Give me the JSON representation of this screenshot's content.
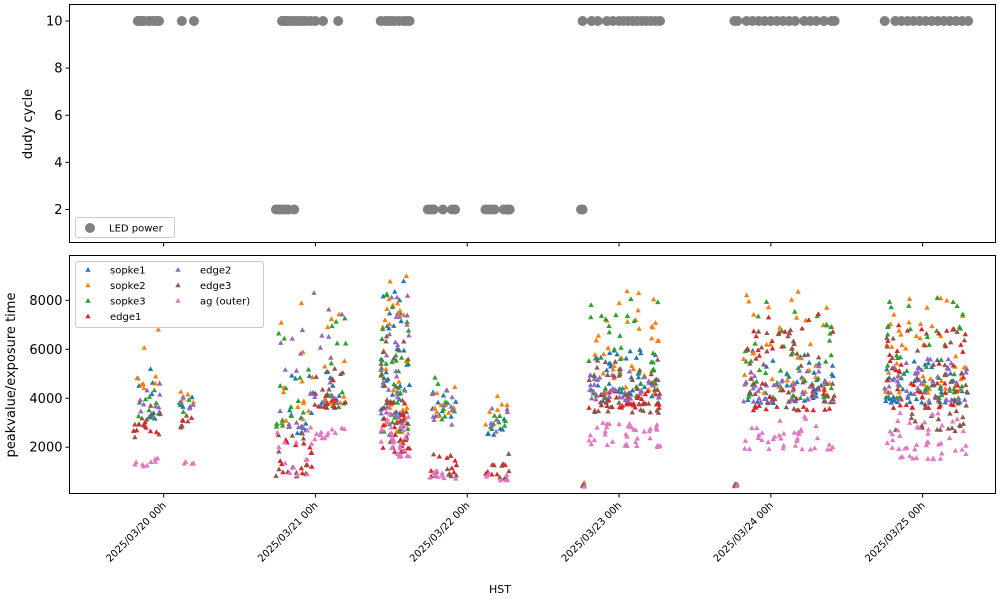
{
  "chart_data": [
    {
      "type": "scatter",
      "panel": "top",
      "xlabel": "",
      "ylabel": "dudy cycle",
      "ylim": [
        0.6,
        10.7
      ],
      "yticks": [
        2,
        4,
        6,
        8,
        10
      ],
      "x_unit": "days since 2025/03/20 00h (HST)",
      "xlim": [
        -0.62,
        5.48
      ],
      "legend": {
        "position": "lower-left",
        "entries": [
          {
            "label": "LED power",
            "color": "#808080",
            "marker": "circle"
          }
        ]
      },
      "series": [
        {
          "name": "LED power",
          "color": "#808080",
          "points": [
            [
              -0.17,
              10
            ],
            [
              -0.16,
              10
            ],
            [
              -0.15,
              10
            ],
            [
              -0.14,
              10
            ],
            [
              -0.13,
              10
            ],
            [
              -0.1,
              10
            ],
            [
              -0.09,
              10
            ],
            [
              -0.07,
              10
            ],
            [
              -0.05,
              10
            ],
            [
              -0.04,
              10
            ],
            [
              -0.03,
              10
            ],
            [
              0.12,
              10
            ],
            [
              0.2,
              10
            ],
            [
              0.78,
              10
            ],
            [
              0.79,
              10
            ],
            [
              0.8,
              10
            ],
            [
              0.81,
              10
            ],
            [
              0.82,
              10
            ],
            [
              0.84,
              10
            ],
            [
              0.86,
              10
            ],
            [
              0.88,
              10
            ],
            [
              0.9,
              10
            ],
            [
              0.92,
              10
            ],
            [
              0.94,
              10
            ],
            [
              0.97,
              10
            ],
            [
              1.0,
              10
            ],
            [
              1.05,
              10
            ],
            [
              1.15,
              10
            ],
            [
              1.43,
              10
            ],
            [
              1.46,
              10
            ],
            [
              1.48,
              10
            ],
            [
              1.5,
              10
            ],
            [
              1.52,
              10
            ],
            [
              1.55,
              10
            ],
            [
              1.58,
              10
            ],
            [
              1.6,
              10
            ],
            [
              1.62,
              10
            ],
            [
              2.76,
              10
            ],
            [
              2.82,
              10
            ],
            [
              2.86,
              10
            ],
            [
              2.92,
              10
            ],
            [
              2.96,
              10
            ],
            [
              3.0,
              10
            ],
            [
              3.03,
              10
            ],
            [
              3.06,
              10
            ],
            [
              3.09,
              10
            ],
            [
              3.12,
              10
            ],
            [
              3.15,
              10
            ],
            [
              3.18,
              10
            ],
            [
              3.21,
              10
            ],
            [
              3.24,
              10
            ],
            [
              3.27,
              10
            ],
            [
              3.76,
              10
            ],
            [
              3.78,
              10
            ],
            [
              3.84,
              10
            ],
            [
              3.88,
              10
            ],
            [
              3.92,
              10
            ],
            [
              3.96,
              10
            ],
            [
              4.0,
              10
            ],
            [
              4.04,
              10
            ],
            [
              4.08,
              10
            ],
            [
              4.12,
              10
            ],
            [
              4.16,
              10
            ],
            [
              4.22,
              10
            ],
            [
              4.26,
              10
            ],
            [
              4.3,
              10
            ],
            [
              4.35,
              10
            ],
            [
              4.4,
              10
            ],
            [
              4.42,
              10
            ],
            [
              4.75,
              10
            ],
            [
              4.82,
              10
            ],
            [
              4.86,
              10
            ],
            [
              4.9,
              10
            ],
            [
              4.94,
              10
            ],
            [
              4.98,
              10
            ],
            [
              5.02,
              10
            ],
            [
              5.06,
              10
            ],
            [
              5.1,
              10
            ],
            [
              5.14,
              10
            ],
            [
              5.18,
              10
            ],
            [
              5.22,
              10
            ],
            [
              5.26,
              10
            ],
            [
              5.3,
              10
            ],
            [
              0.74,
              2
            ],
            [
              0.76,
              2
            ],
            [
              0.78,
              2
            ],
            [
              0.8,
              2
            ],
            [
              0.82,
              2
            ],
            [
              0.86,
              2
            ],
            [
              1.74,
              2
            ],
            [
              1.76,
              2
            ],
            [
              1.78,
              2
            ],
            [
              1.84,
              2
            ],
            [
              1.9,
              2
            ],
            [
              1.92,
              2
            ],
            [
              2.12,
              2
            ],
            [
              2.14,
              2
            ],
            [
              2.16,
              2
            ],
            [
              2.18,
              2
            ],
            [
              2.24,
              2
            ],
            [
              2.26,
              2
            ],
            [
              2.28,
              2
            ],
            [
              2.75,
              2
            ],
            [
              2.76,
              2
            ]
          ]
        }
      ]
    },
    {
      "type": "scatter",
      "panel": "bottom",
      "xlabel": "HST",
      "ylabel": "peakvalue/exposure time",
      "ylim": [
        110,
        9830
      ],
      "yticks": [
        2000,
        4000,
        6000,
        8000
      ],
      "xlim": [
        -0.62,
        5.48
      ],
      "xticks": [
        0,
        1,
        2,
        3,
        4,
        5
      ],
      "xtick_labels": [
        "2025/03/20 00h",
        "2025/03/21 00h",
        "2025/03/22 00h",
        "2025/03/23 00h",
        "2025/03/24 00h",
        "2025/03/25 00h"
      ],
      "legend": {
        "position": "upper-left",
        "columns": 2
      },
      "series": [
        {
          "name": "sopke1",
          "color": "#1f77b4"
        },
        {
          "name": "sopke2",
          "color": "#ff7f0e"
        },
        {
          "name": "sopke3",
          "color": "#2ca02c"
        },
        {
          "name": "edge1",
          "color": "#d62728"
        },
        {
          "name": "edge2",
          "color": "#9467bd"
        },
        {
          "name": "edge3",
          "color": "#8c564b"
        },
        {
          "name": "ag (outer)",
          "color": "#e377c2"
        }
      ],
      "clusters_note": "observation windows [x_start, x_end] in days with per-series typical [min,max] values",
      "clusters": [
        {
          "x": [
            -0.2,
            -0.02
          ],
          "n": 9,
          "ranges": {
            "sopke1": [
              3000,
              5200
            ],
            "sopke2": [
              3500,
              7000
            ],
            "sopke3": [
              3200,
              4400
            ],
            "edge1": [
              2600,
              3600
            ],
            "edge2": [
              3400,
              5000
            ],
            "edge3": [
              2400,
              3800
            ],
            "ag (outer)": [
              1200,
              1600
            ]
          }
        },
        {
          "x": [
            0.1,
            0.2
          ],
          "n": 4,
          "ranges": {
            "sopke1": [
              3500,
              4200
            ],
            "sopke2": [
              3800,
              4400
            ],
            "sopke3": [
              3400,
              4000
            ],
            "edge1": [
              2800,
              3200
            ],
            "edge2": [
              3500,
              4100
            ],
            "edge3": [
              2800,
              3300
            ],
            "ag (outer)": [
              1300,
              1400
            ]
          }
        },
        {
          "x": [
            0.74,
            0.98
          ],
          "n": 14,
          "ranges": {
            "sopke1": [
              2500,
              5500
            ],
            "sopke2": [
              3000,
              8500
            ],
            "sopke3": [
              2800,
              7500
            ],
            "edge1": [
              900,
              2300
            ],
            "edge2": [
              2800,
              7200
            ],
            "edge3": [
              800,
              2600
            ],
            "ag (outer)": [
              800,
              2900
            ]
          }
        },
        {
          "x": [
            0.98,
            1.2
          ],
          "n": 12,
          "ranges": {
            "sopke1": [
              3600,
              5200
            ],
            "sopke2": [
              3800,
              8800
            ],
            "sopke3": [
              3600,
              7500
            ],
            "edge1": [
              3600,
              4800
            ],
            "edge2": [
              3800,
              8400
            ],
            "edge3": [
              3600,
              5200
            ],
            "ag (outer)": [
              2300,
              2800
            ]
          }
        },
        {
          "x": [
            1.43,
            1.62
          ],
          "n": 30,
          "ranges": {
            "sopke1": [
              2500,
              8800
            ],
            "sopke2": [
              2600,
              9000
            ],
            "sopke3": [
              2600,
              8500
            ],
            "edge1": [
              1800,
              4200
            ],
            "edge2": [
              2500,
              8700
            ],
            "edge3": [
              2200,
              6800
            ],
            "ag (outer)": [
              1600,
              3500
            ]
          }
        },
        {
          "x": [
            1.75,
            1.93
          ],
          "n": 9,
          "ranges": {
            "sopke1": [
              3000,
              4500
            ],
            "sopke2": [
              3200,
              5300
            ],
            "sopke3": [
              3100,
              5000
            ],
            "edge1": [
              900,
              1800
            ],
            "edge2": [
              2900,
              4900
            ],
            "edge3": [
              800,
              2100
            ],
            "ag (outer)": [
              700,
              1100
            ]
          }
        },
        {
          "x": [
            2.12,
            2.28
          ],
          "n": 7,
          "ranges": {
            "sopke1": [
              2500,
              3600
            ],
            "sopke2": [
              2700,
              4100
            ],
            "sopke3": [
              2600,
              3600
            ],
            "edge1": [
              800,
              1500
            ],
            "edge2": [
              2600,
              3800
            ],
            "edge3": [
              700,
              1800
            ],
            "ag (outer)": [
              600,
              900
            ]
          }
        },
        {
          "x": [
            2.76,
            2.77
          ],
          "n": 1,
          "ranges": {
            "sopke1": [
              400,
              500
            ],
            "sopke2": [
              450,
              550
            ],
            "sopke3": [
              420,
              520
            ],
            "edge1": [
              400,
              480
            ],
            "edge2": [
              400,
              500
            ],
            "edge3": [
              400,
              480
            ],
            "ag (outer)": [
              380,
              450
            ]
          }
        },
        {
          "x": [
            2.8,
            3.27
          ],
          "n": 38,
          "ranges": {
            "sopke1": [
              3800,
              6000
            ],
            "sopke2": [
              4200,
              8600
            ],
            "sopke3": [
              4000,
              8300
            ],
            "edge1": [
              3600,
              4400
            ],
            "edge2": [
              3900,
              5200
            ],
            "edge3": [
              3400,
              5600
            ],
            "ag (outer)": [
              2000,
              3000
            ]
          }
        },
        {
          "x": [
            3.76,
            3.78
          ],
          "n": 1,
          "ranges": {
            "sopke1": [
              400,
              500
            ],
            "sopke2": [
              450,
              550
            ],
            "sopke3": [
              420,
              520
            ],
            "edge1": [
              400,
              480
            ],
            "edge2": [
              400,
              500
            ],
            "edge3": [
              400,
              480
            ],
            "ag (outer)": [
              380,
              450
            ]
          }
        },
        {
          "x": [
            3.82,
            4.42
          ],
          "n": 40,
          "ranges": {
            "sopke1": [
              3800,
              6000
            ],
            "sopke2": [
              4200,
              8800
            ],
            "sopke3": [
              4000,
              8200
            ],
            "edge1": [
              3500,
              7500
            ],
            "edge2": [
              3800,
              5400
            ],
            "edge3": [
              3500,
              6800
            ],
            "ag (outer)": [
              1900,
              3300
            ]
          }
        },
        {
          "x": [
            4.75,
            5.3
          ],
          "n": 46,
          "ranges": {
            "sopke1": [
              3800,
              5600
            ],
            "sopke2": [
              4200,
              8800
            ],
            "sopke3": [
              4000,
              8300
            ],
            "edge1": [
              3600,
              7000
            ],
            "edge2": [
              3900,
              5600
            ],
            "edge3": [
              2600,
              7500
            ],
            "ag (outer)": [
              1500,
              3400
            ]
          }
        }
      ]
    }
  ],
  "labels": {
    "top_ylabel": "dudy cycle",
    "bottom_ylabel": "peakvalue/exposure time",
    "xlabel": "HST",
    "top_legend": "LED power"
  }
}
